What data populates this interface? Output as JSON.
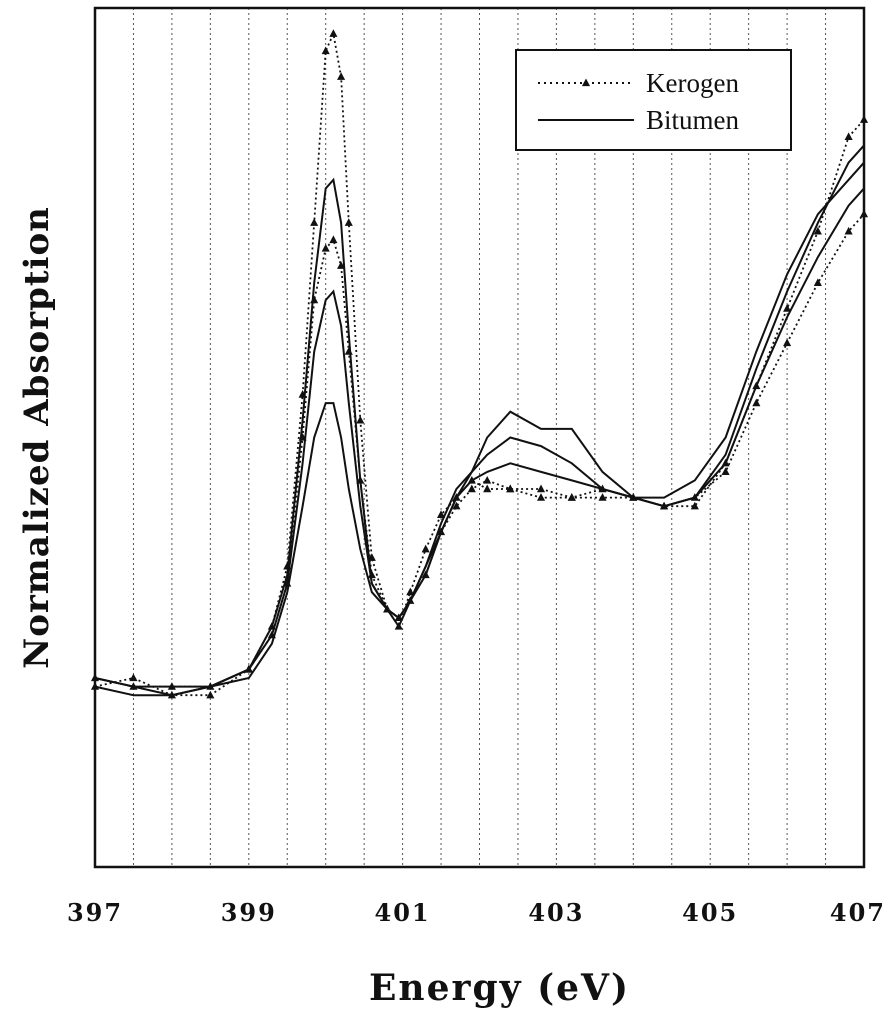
{
  "chart_data": {
    "type": "line",
    "xlabel": "Energy (eV)",
    "ylabel": "Normalized Absorption",
    "xlim": [
      397,
      407
    ],
    "ylim": [
      0,
      1
    ],
    "x_ticks": [
      "397",
      "399",
      "401",
      "403",
      "405",
      "407"
    ],
    "grid": "vertical dotted lines every 0.5 eV",
    "legend_position": "top-right",
    "legend": [
      {
        "label": "Kerogen",
        "style": "dotted-with-triangles"
      },
      {
        "label": "Bitumen",
        "style": "solid"
      }
    ],
    "series": [
      {
        "style": "dotted-with-triangles",
        "x": [
          397.0,
          397.5,
          398.0,
          398.5,
          399.0,
          399.3,
          399.5,
          399.7,
          399.85,
          400.0,
          400.1,
          400.2,
          400.3,
          400.45,
          400.6,
          400.8,
          400.95,
          401.1,
          401.3,
          401.5,
          401.7,
          401.9,
          402.1,
          402.4,
          402.8,
          403.2,
          403.6,
          404.0,
          404.4,
          404.8,
          405.2,
          405.6,
          406.0,
          406.4,
          406.8,
          407.0
        ],
        "y": [
          0.21,
          0.22,
          0.2,
          0.2,
          0.23,
          0.28,
          0.35,
          0.55,
          0.75,
          0.95,
          0.97,
          0.92,
          0.75,
          0.52,
          0.36,
          0.3,
          0.28,
          0.32,
          0.37,
          0.41,
          0.43,
          0.45,
          0.44,
          0.44,
          0.43,
          0.43,
          0.44,
          0.43,
          0.42,
          0.42,
          0.47,
          0.56,
          0.65,
          0.74,
          0.85,
          0.87
        ]
      },
      {
        "style": "dotted-with-triangles",
        "x": [
          397.0,
          397.5,
          398.0,
          398.5,
          399.0,
          399.3,
          399.5,
          399.7,
          399.85,
          400.0,
          400.1,
          400.2,
          400.3,
          400.45,
          400.6,
          400.8,
          400.95,
          401.1,
          401.3,
          401.5,
          401.7,
          401.9,
          402.1,
          402.4,
          402.8,
          403.2,
          403.6,
          404.0,
          404.4,
          404.8,
          405.2,
          405.6,
          406.0,
          406.4,
          406.8,
          407.0
        ],
        "y": [
          0.22,
          0.21,
          0.21,
          0.21,
          0.23,
          0.27,
          0.33,
          0.5,
          0.66,
          0.72,
          0.73,
          0.7,
          0.6,
          0.45,
          0.34,
          0.3,
          0.29,
          0.31,
          0.34,
          0.39,
          0.42,
          0.44,
          0.45,
          0.44,
          0.44,
          0.43,
          0.43,
          0.43,
          0.42,
          0.43,
          0.46,
          0.54,
          0.61,
          0.68,
          0.74,
          0.76
        ]
      },
      {
        "style": "solid",
        "x": [
          397.0,
          397.5,
          398.0,
          398.5,
          399.0,
          399.3,
          399.5,
          399.7,
          399.85,
          400.0,
          400.1,
          400.2,
          400.3,
          400.45,
          400.6,
          400.8,
          400.95,
          401.1,
          401.3,
          401.5,
          401.7,
          401.9,
          402.1,
          402.4,
          402.8,
          403.2,
          403.6,
          404.0,
          404.4,
          404.8,
          405.2,
          405.6,
          406.0,
          406.4,
          406.8,
          407.0
        ],
        "y": [
          0.22,
          0.21,
          0.2,
          0.21,
          0.23,
          0.28,
          0.34,
          0.52,
          0.68,
          0.79,
          0.8,
          0.75,
          0.62,
          0.45,
          0.33,
          0.3,
          0.29,
          0.31,
          0.35,
          0.4,
          0.44,
          0.46,
          0.48,
          0.5,
          0.49,
          0.47,
          0.44,
          0.43,
          0.42,
          0.43,
          0.48,
          0.58,
          0.67,
          0.75,
          0.82,
          0.84
        ]
      },
      {
        "style": "solid",
        "x": [
          397.0,
          397.5,
          398.0,
          398.5,
          399.0,
          399.3,
          399.5,
          399.7,
          399.85,
          400.0,
          400.1,
          400.2,
          400.3,
          400.45,
          400.6,
          400.8,
          400.95,
          401.1,
          401.3,
          401.5,
          401.7,
          401.9,
          402.1,
          402.4,
          402.8,
          403.2,
          403.6,
          404.0,
          404.4,
          404.8,
          405.2,
          405.6,
          406.0,
          406.4,
          406.8,
          407.0
        ],
        "y": [
          0.21,
          0.2,
          0.2,
          0.21,
          0.22,
          0.26,
          0.32,
          0.42,
          0.5,
          0.54,
          0.54,
          0.5,
          0.44,
          0.37,
          0.32,
          0.3,
          0.28,
          0.31,
          0.35,
          0.39,
          0.43,
          0.46,
          0.5,
          0.53,
          0.51,
          0.51,
          0.46,
          0.43,
          0.43,
          0.45,
          0.5,
          0.6,
          0.69,
          0.76,
          0.8,
          0.82
        ]
      },
      {
        "style": "solid",
        "x": [
          397.0,
          397.5,
          398.0,
          398.5,
          399.0,
          399.3,
          399.5,
          399.7,
          399.85,
          400.0,
          400.1,
          400.2,
          400.3,
          400.45,
          400.6,
          400.8,
          400.95,
          401.1,
          401.3,
          401.5,
          401.7,
          401.9,
          402.1,
          402.4,
          402.8,
          403.2,
          403.6,
          404.0,
          404.4,
          404.8,
          405.2,
          405.6,
          406.0,
          406.4,
          406.8,
          407.0
        ],
        "y": [
          0.22,
          0.21,
          0.21,
          0.21,
          0.23,
          0.27,
          0.33,
          0.47,
          0.6,
          0.66,
          0.67,
          0.63,
          0.54,
          0.42,
          0.33,
          0.3,
          0.29,
          0.31,
          0.34,
          0.39,
          0.43,
          0.45,
          0.46,
          0.47,
          0.46,
          0.45,
          0.44,
          0.43,
          0.42,
          0.43,
          0.47,
          0.56,
          0.64,
          0.71,
          0.77,
          0.79
        ]
      }
    ]
  }
}
